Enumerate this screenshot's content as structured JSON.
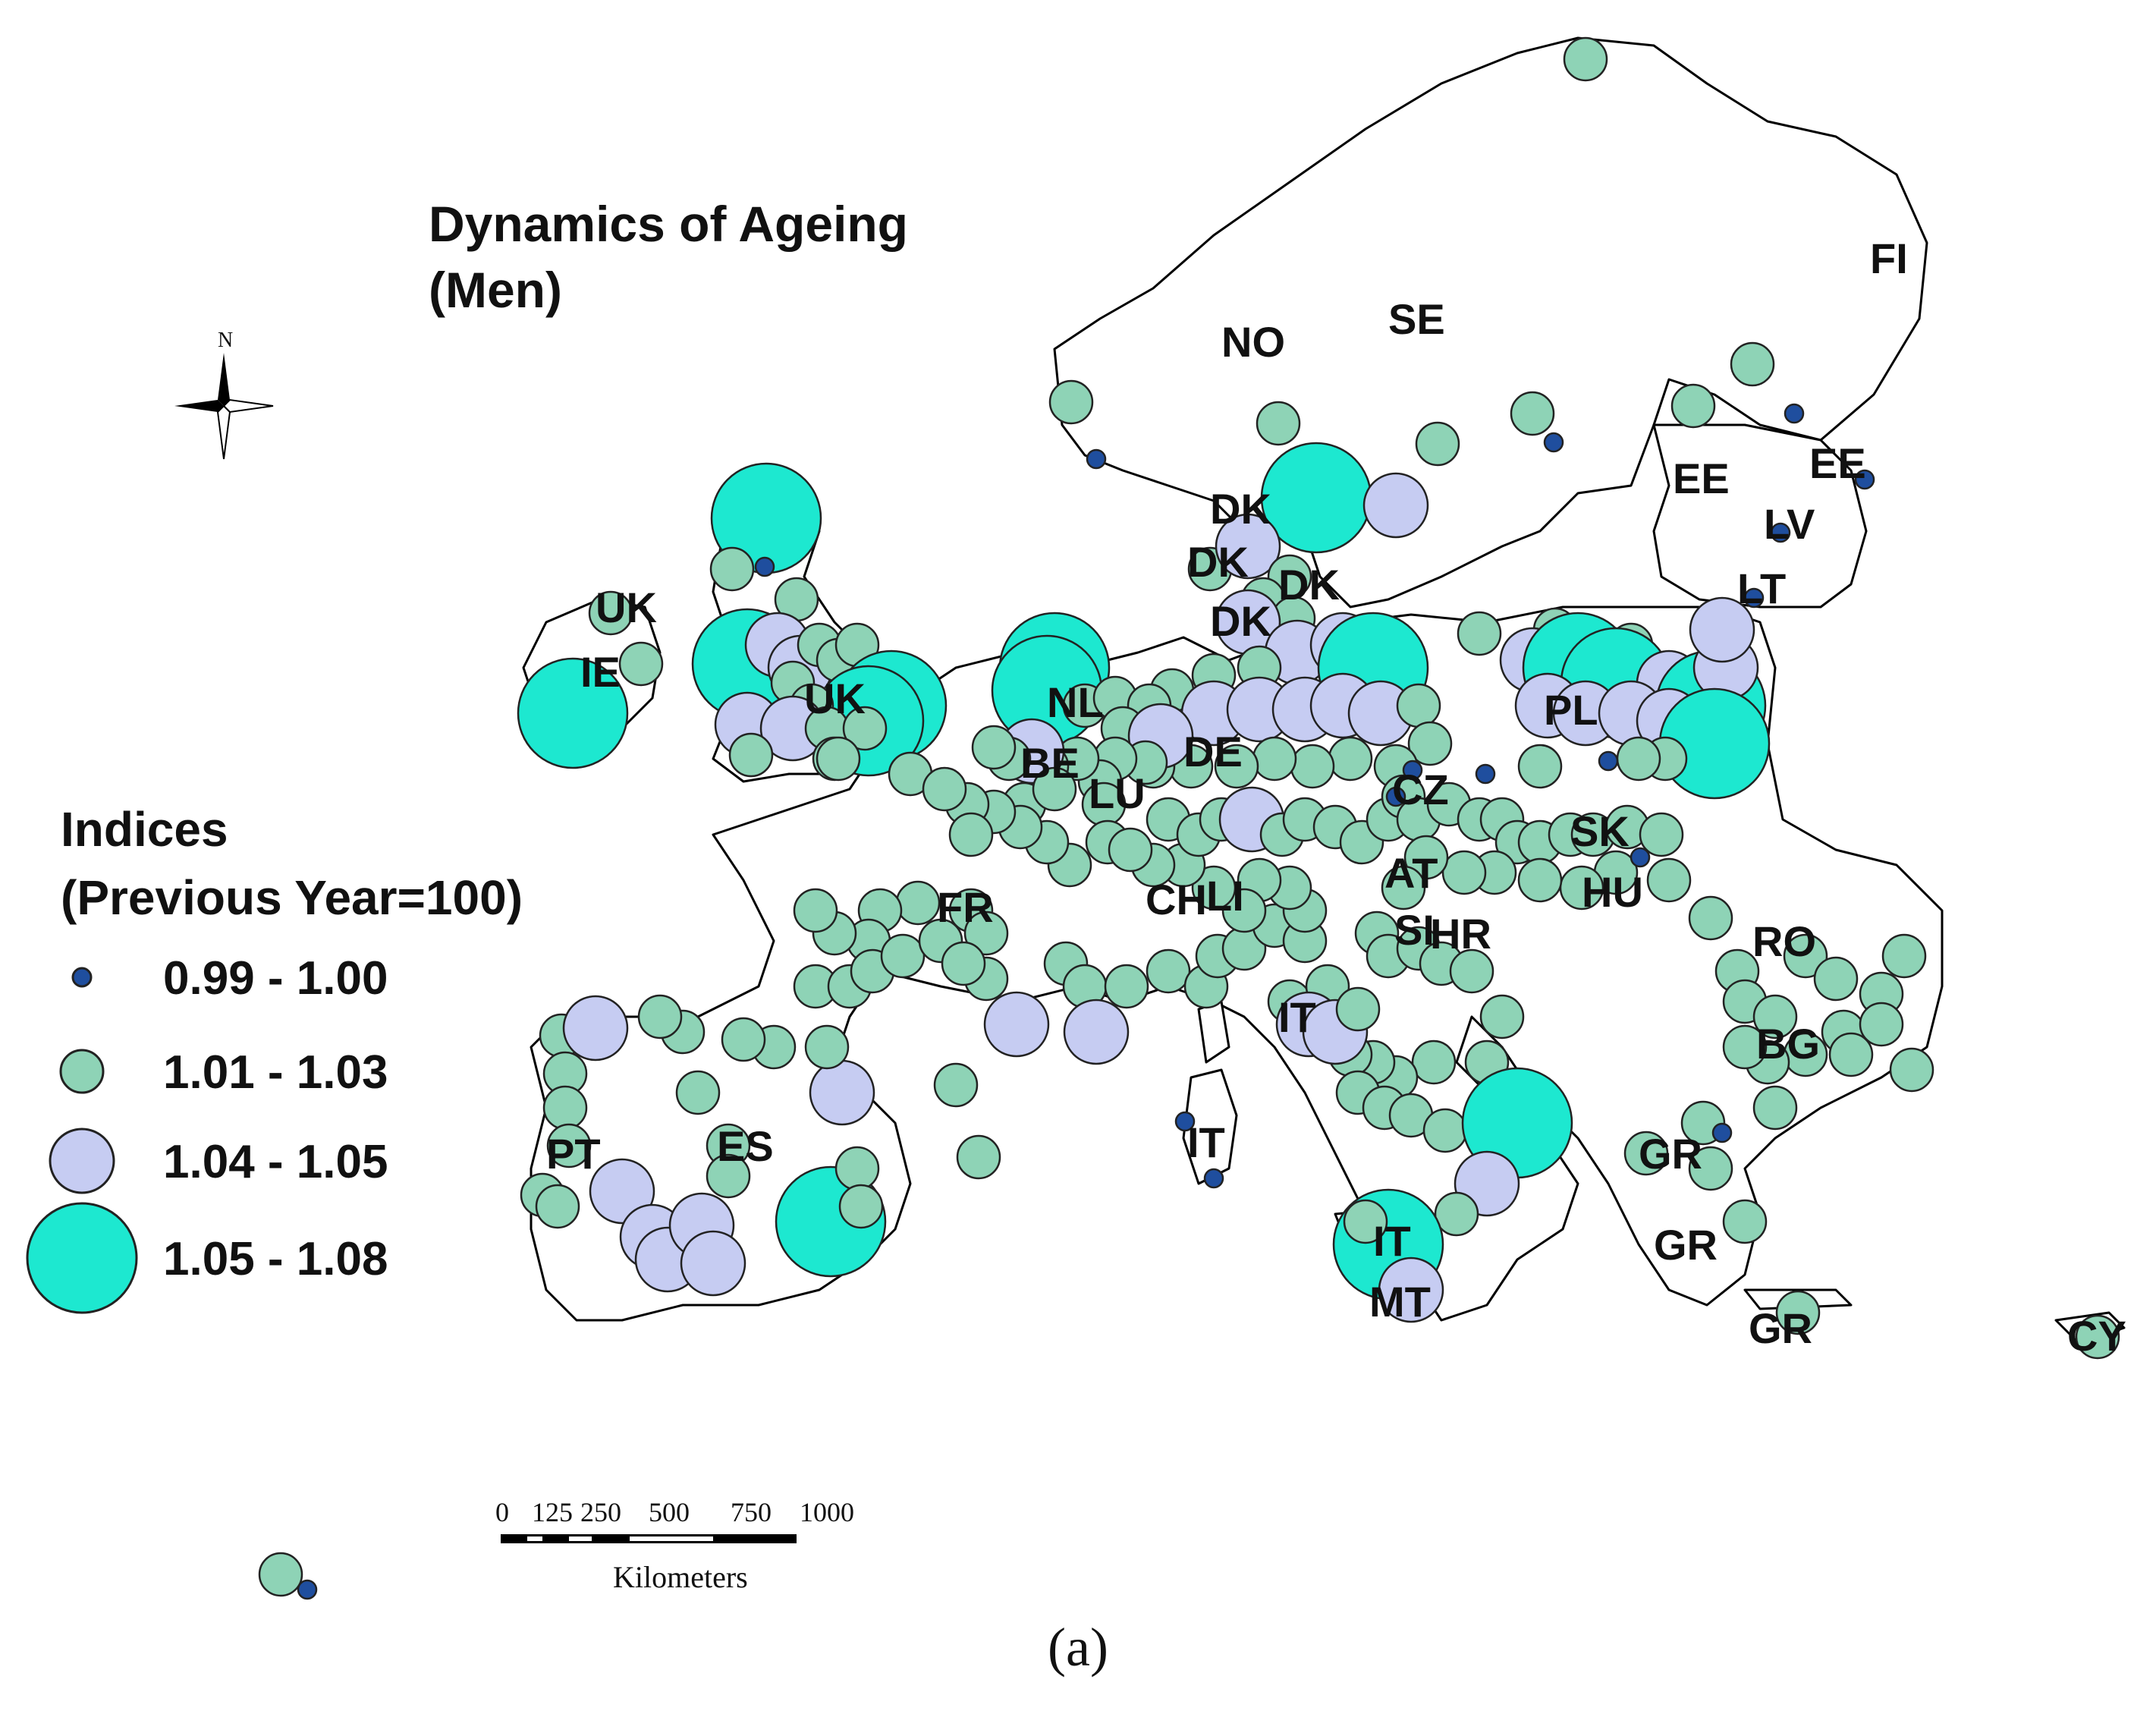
{
  "map": {
    "title_line1": "Dynamics of Ageing",
    "title_line2": "(Men)",
    "north_label": "N",
    "legend": {
      "title_line1": "Indices",
      "title_line2": "(Previous Year=100)",
      "classes": [
        {
          "label": "0.99 - 1.00",
          "color": "#1f4e9e"
        },
        {
          "label": "1.01 - 1.03",
          "color": "#8ed3b6"
        },
        {
          "label": "1.04 - 1.05",
          "color": "#c6ccf2"
        },
        {
          "label": "1.05 - 1.08",
          "color": "#1de8d0"
        }
      ]
    },
    "scalebar": {
      "ticks": [
        "0",
        "125",
        "250",
        "500",
        "750",
        "1000"
      ],
      "unit": "Kilometers"
    },
    "country_labels": [
      "NO",
      "SE",
      "FI",
      "EE",
      "EE",
      "LV",
      "LT",
      "DK",
      "DK",
      "DK",
      "DK",
      "UK",
      "IE",
      "UK",
      "NL",
      "BE",
      "LU",
      "DE",
      "PL",
      "CZ",
      "SK",
      "FR",
      "CH",
      "LI",
      "AT",
      "SI",
      "HR",
      "HU",
      "RO",
      "BG",
      "IT",
      "IT",
      "IT",
      "MT",
      "ES",
      "PT",
      "GR",
      "GR",
      "GR",
      "CY"
    ]
  },
  "caption": "(a)"
}
